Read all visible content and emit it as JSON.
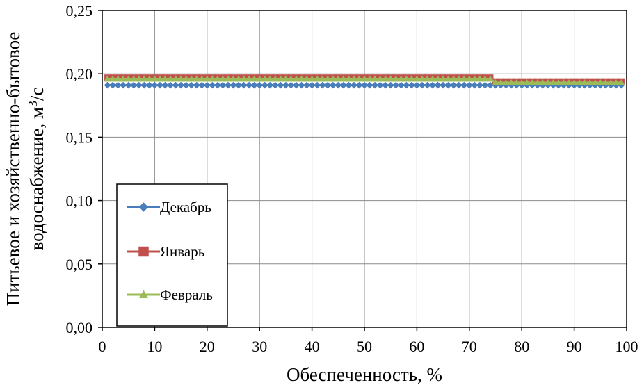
{
  "chart_data": {
    "type": "line",
    "xlabel": "Обеспеченность, %",
    "ylabel_line1": "Питьевое и хозяйственно-бытовое",
    "ylabel_line2_prefix": "водоснабжение, м",
    "ylabel_sup": "3",
    "ylabel_suffix": "/с",
    "xlim": [
      0,
      100
    ],
    "ylim": [
      0,
      0.25
    ],
    "xticks": [
      0,
      10,
      20,
      30,
      40,
      50,
      60,
      70,
      80,
      90,
      100
    ],
    "yticks": [
      0.0,
      0.05,
      0.1,
      0.15,
      0.2,
      0.25
    ],
    "ytick_labels": [
      "0,00",
      "0,05",
      "0,10",
      "0,15",
      "0,20",
      "0,25"
    ],
    "grid": true,
    "legend_position": "lower-left",
    "x_start": 1,
    "x_end": 99,
    "x_step": 1,
    "series": [
      {
        "name": "Декабрь",
        "marker": "diamond",
        "color": "#4a7ebb",
        "segments": [
          {
            "from": 1,
            "to": 99,
            "y": 0.191
          }
        ]
      },
      {
        "name": "Январь",
        "marker": "square",
        "color": "#c0504d",
        "segments": [
          {
            "from": 1,
            "to": 74,
            "y": 0.197
          },
          {
            "from": 75,
            "to": 99,
            "y": 0.194
          }
        ]
      },
      {
        "name": "Февраль",
        "marker": "triangle",
        "color": "#9bbb59",
        "segments": [
          {
            "from": 1,
            "to": 74,
            "y": 0.196
          },
          {
            "from": 75,
            "to": 99,
            "y": 0.193
          }
        ]
      }
    ]
  }
}
